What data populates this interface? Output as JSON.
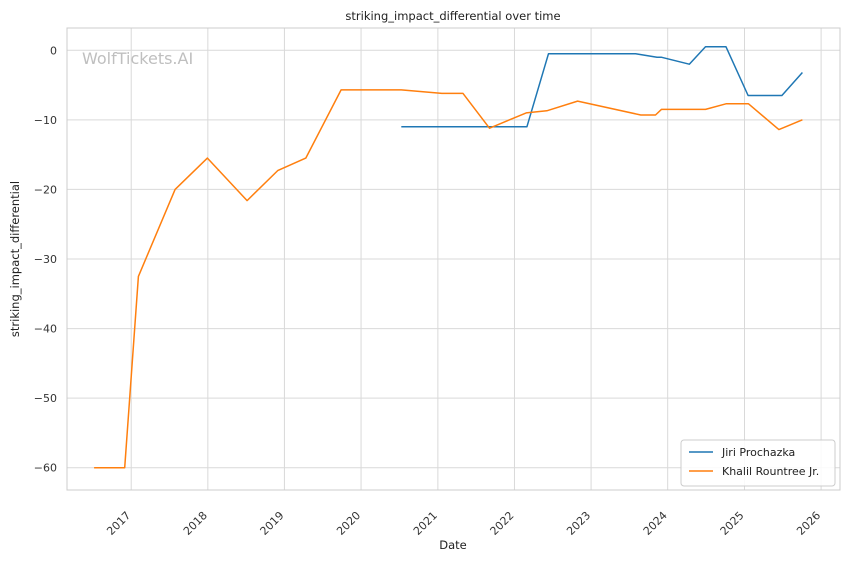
{
  "watermark": "WolfTickets.AI",
  "chart_data": {
    "type": "line",
    "title": "striking_impact_differential over time",
    "xlabel": "Date",
    "ylabel": "striking_impact_differential",
    "x_ticks": [
      "2017",
      "2018",
      "2019",
      "2020",
      "2021",
      "2022",
      "2023",
      "2024",
      "2025",
      "2026"
    ],
    "y_ticks": [
      0,
      -10,
      -20,
      -30,
      -40,
      -50,
      -60
    ],
    "xlim": [
      "2016-03-01",
      "2026-04-01"
    ],
    "ylim": [
      -63.2,
      3.2
    ],
    "grid": true,
    "legend_position": "lower-right",
    "series": [
      {
        "name": "Jiri Prochazka",
        "color": "#1f77b4",
        "points": [
          [
            "2020-07-11",
            -11.0
          ],
          [
            "2022-03-01",
            -11.0
          ],
          [
            "2022-06-12",
            -0.5
          ],
          [
            "2023-08-01",
            -0.5
          ],
          [
            "2023-11-11",
            -1.0
          ],
          [
            "2023-12-01",
            -1.0
          ],
          [
            "2024-04-13",
            -2.0
          ],
          [
            "2024-06-29",
            0.5
          ],
          [
            "2024-10-05",
            0.5
          ],
          [
            "2025-01-18",
            -6.5
          ],
          [
            "2025-06-28",
            -6.5
          ],
          [
            "2025-10-04",
            -3.2
          ]
        ]
      },
      {
        "name": "Khalil Rountree Jr.",
        "color": "#ff7f0e",
        "points": [
          [
            "2016-07-08",
            -60.0
          ],
          [
            "2016-12-01",
            -60.0
          ],
          [
            "2017-02-04",
            -32.5
          ],
          [
            "2017-07-29",
            -20.0
          ],
          [
            "2017-12-30",
            -15.5
          ],
          [
            "2018-07-07",
            -21.6
          ],
          [
            "2018-11-30",
            -17.3
          ],
          [
            "2019-04-13",
            -15.5
          ],
          [
            "2019-09-28",
            -5.7
          ],
          [
            "2020-07-11",
            -5.7
          ],
          [
            "2021-01-20",
            -6.2
          ],
          [
            "2021-05-01",
            -6.2
          ],
          [
            "2021-09-04",
            -11.2
          ],
          [
            "2022-02-26",
            -9.0
          ],
          [
            "2022-06-04",
            -8.7
          ],
          [
            "2022-10-29",
            -7.3
          ],
          [
            "2023-08-26",
            -9.3
          ],
          [
            "2023-11-04",
            -9.3
          ],
          [
            "2023-12-02",
            -8.5
          ],
          [
            "2024-06-29",
            -8.5
          ],
          [
            "2024-10-05",
            -7.7
          ],
          [
            "2025-01-20",
            -7.7
          ],
          [
            "2025-06-14",
            -11.4
          ],
          [
            "2025-10-04",
            -10.0
          ]
        ]
      }
    ]
  }
}
